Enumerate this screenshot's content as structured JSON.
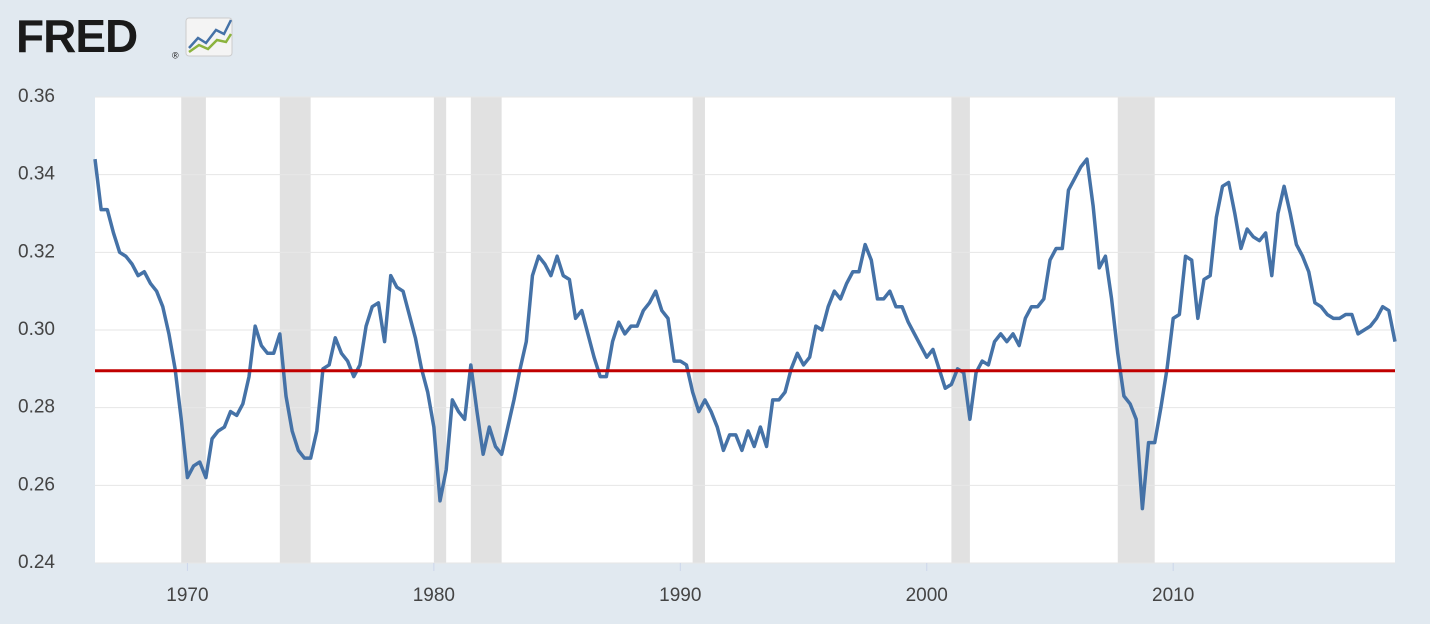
{
  "logo": "FRED",
  "logo_mark": "®",
  "chart_data": {
    "type": "line",
    "x": [
      1966.25,
      1966.5,
      1966.75,
      1967,
      1967.25,
      1967.5,
      1967.75,
      1968,
      1968.25,
      1968.5,
      1968.75,
      1969,
      1969.25,
      1969.5,
      1969.75,
      1970,
      1970.25,
      1970.5,
      1970.75,
      1971,
      1971.25,
      1971.5,
      1971.75,
      1972,
      1972.25,
      1972.5,
      1972.75,
      1973,
      1973.25,
      1973.5,
      1973.75,
      1974,
      1974.25,
      1974.5,
      1974.75,
      1975,
      1975.25,
      1975.5,
      1975.75,
      1976,
      1976.25,
      1976.5,
      1976.75,
      1977,
      1977.25,
      1977.5,
      1977.75,
      1978,
      1978.25,
      1978.5,
      1978.75,
      1979,
      1979.25,
      1979.5,
      1979.75,
      1980,
      1980.25,
      1980.5,
      1980.75,
      1981,
      1981.25,
      1981.5,
      1981.75,
      1982,
      1982.25,
      1982.5,
      1982.75,
      1983,
      1983.25,
      1983.5,
      1983.75,
      1984,
      1984.25,
      1984.5,
      1984.75,
      1985,
      1985.25,
      1985.5,
      1985.75,
      1986,
      1986.25,
      1986.5,
      1986.75,
      1987,
      1987.25,
      1987.5,
      1987.75,
      1988,
      1988.25,
      1988.5,
      1988.75,
      1989,
      1989.25,
      1989.5,
      1989.75,
      1990,
      1990.25,
      1990.5,
      1990.75,
      1991,
      1991.25,
      1991.5,
      1991.75,
      1992,
      1992.25,
      1992.5,
      1992.75,
      1993,
      1993.25,
      1993.5,
      1993.75,
      1994,
      1994.25,
      1994.5,
      1994.75,
      1995,
      1995.25,
      1995.5,
      1995.75,
      1996,
      1996.25,
      1996.5,
      1996.75,
      1997,
      1997.25,
      1997.5,
      1997.75,
      1998,
      1998.25,
      1998.5,
      1998.75,
      1999,
      1999.25,
      1999.5,
      1999.75,
      2000,
      2000.25,
      2000.5,
      2000.75,
      2001,
      2001.25,
      2001.5,
      2001.75,
      2002,
      2002.25,
      2002.5,
      2002.75,
      2003,
      2003.25,
      2003.5,
      2003.75,
      2004,
      2004.25,
      2004.5,
      2004.75,
      2005,
      2005.25,
      2005.5,
      2005.75,
      2006,
      2006.25,
      2006.5,
      2006.75,
      2007,
      2007.25,
      2007.5,
      2007.75,
      2008,
      2008.25,
      2008.5,
      2008.75,
      2009,
      2009.25,
      2009.5,
      2009.75,
      2010,
      2010.25,
      2010.5,
      2010.75,
      2011,
      2011.25,
      2011.5,
      2011.75,
      2012,
      2012.25,
      2012.5,
      2012.75,
      2013,
      2013.25,
      2013.5,
      2013.75,
      2014,
      2014.25,
      2014.5,
      2014.75,
      2015,
      2015.25,
      2015.5,
      2015.75,
      2016,
      2016.25,
      2016.5,
      2016.75,
      2017,
      2017.25,
      2017.5,
      2017.75,
      2018,
      2018.25,
      2018.5,
      2018.75,
      2019
    ],
    "series": [
      {
        "color": "#4572a7",
        "values": [
          0.344,
          0.331,
          0.331,
          0.325,
          0.32,
          0.319,
          0.317,
          0.314,
          0.315,
          0.312,
          0.31,
          0.306,
          0.299,
          0.29,
          0.277,
          0.262,
          0.265,
          0.266,
          0.262,
          0.272,
          0.274,
          0.275,
          0.279,
          0.278,
          0.281,
          0.288,
          0.301,
          0.296,
          0.294,
          0.294,
          0.299,
          0.283,
          0.274,
          0.269,
          0.267,
          0.267,
          0.274,
          0.29,
          0.291,
          0.298,
          0.294,
          0.292,
          0.288,
          0.291,
          0.301,
          0.306,
          0.307,
          0.297,
          0.314,
          0.311,
          0.31,
          0.304,
          0.298,
          0.29,
          0.284,
          0.275,
          0.256,
          0.264,
          0.282,
          0.279,
          0.277,
          0.291,
          0.279,
          0.268,
          0.275,
          0.27,
          0.268,
          0.275,
          0.282,
          0.29,
          0.297,
          0.314,
          0.319,
          0.317,
          0.314,
          0.319,
          0.314,
          0.313,
          0.303,
          0.305,
          0.299,
          0.293,
          0.288,
          0.288,
          0.297,
          0.302,
          0.299,
          0.301,
          0.301,
          0.305,
          0.307,
          0.31,
          0.305,
          0.303,
          0.292,
          0.292,
          0.291,
          0.284,
          0.279,
          0.282,
          0.279,
          0.275,
          0.269,
          0.273,
          0.273,
          0.269,
          0.274,
          0.27,
          0.275,
          0.27,
          0.282,
          0.282,
          0.284,
          0.29,
          0.294,
          0.291,
          0.293,
          0.301,
          0.3,
          0.306,
          0.31,
          0.308,
          0.312,
          0.315,
          0.315,
          0.322,
          0.318,
          0.308,
          0.308,
          0.31,
          0.306,
          0.306,
          0.302,
          0.299,
          0.296,
          0.293,
          0.295,
          0.29,
          0.285,
          0.286,
          0.29,
          0.289,
          0.277,
          0.289,
          0.292,
          0.291,
          0.297,
          0.299,
          0.297,
          0.299,
          0.296,
          0.303,
          0.306,
          0.306,
          0.308,
          0.318,
          0.321,
          0.321,
          0.336,
          0.339,
          0.342,
          0.344,
          0.332,
          0.316,
          0.319,
          0.308,
          0.294,
          0.283,
          0.281,
          0.277,
          0.254,
          0.271,
          0.271,
          0.28,
          0.29,
          0.303,
          0.304,
          0.319,
          0.318,
          0.303,
          0.313,
          0.314,
          0.329,
          0.337,
          0.338,
          0.33,
          0.321,
          0.326,
          0.324,
          0.323,
          0.325,
          0.314,
          0.33,
          0.337,
          0.33,
          0.322,
          0.319,
          0.315,
          0.307,
          0.306,
          0.304,
          0.303,
          0.303,
          0.304,
          0.304,
          0.299,
          0.3,
          0.301,
          0.303,
          0.306,
          0.305,
          0.297
        ]
      }
    ],
    "reference_line": {
      "value": 0.2895,
      "color": "#c00000"
    },
    "recessions": [
      [
        1969.75,
        1970.75
      ],
      [
        1973.75,
        1975.0
      ],
      [
        1980.0,
        1980.5
      ],
      [
        1981.5,
        1982.75
      ],
      [
        1990.5,
        1991.0
      ],
      [
        2001.0,
        2001.75
      ],
      [
        2007.75,
        2009.25
      ]
    ],
    "recession_color": "#e1e1e1",
    "xlim": [
      1966.25,
      2019
    ],
    "xticks": [
      1970,
      1980,
      1990,
      2000,
      2010
    ],
    "ylim": [
      0.24,
      0.36
    ],
    "yticks": [
      0.24,
      0.26,
      0.28,
      {
        "value": 0.3,
        "label": "0.30"
      },
      0.32,
      0.34,
      0.36
    ],
    "grid": true
  }
}
